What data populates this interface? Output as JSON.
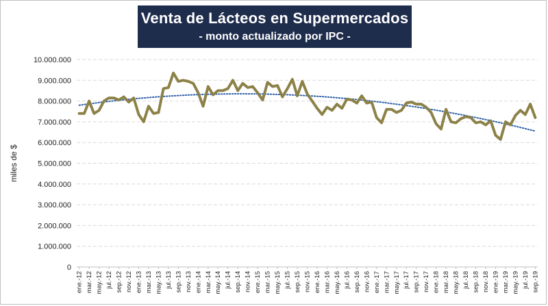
{
  "title": "Venta de Lácteos en Supermercados",
  "subtitle": "- monto actualizado por IPC -",
  "colors": {
    "title_bg": "#1f2d4d",
    "series": "#8c8248",
    "trend": "#2e5fa8",
    "grid": "#d9d9d9"
  },
  "chart_data": {
    "type": "line",
    "ylabel": "miles de $",
    "xlabel": "",
    "ylim": [
      0,
      10000000
    ],
    "y_ticks": [
      0,
      1000000,
      2000000,
      3000000,
      4000000,
      5000000,
      6000000,
      7000000,
      8000000,
      9000000,
      10000000
    ],
    "y_tick_labels": [
      "0",
      "1.000.000",
      "2.000.000",
      "3.000.000",
      "4.000.000",
      "5.000.000",
      "6.000.000",
      "7.000.000",
      "8.000.000",
      "9.000.000",
      "10.000.000"
    ],
    "grid": true,
    "x_tick_labels": [
      "ene.-12",
      "mar.-12",
      "may.-12",
      "jul.-12",
      "sep.-12",
      "nov.-12",
      "ene.-13",
      "mar.-13",
      "may.-13",
      "jul.-13",
      "sep.-13",
      "nov.-13",
      "ene.-14",
      "mar.-14",
      "may.-14",
      "jul.-14",
      "sep.-14",
      "nov.-14",
      "ene.-15",
      "mar.-15",
      "may.-15",
      "jul.-15",
      "sep.-15",
      "nov.-15",
      "ene.-16",
      "mar.-16",
      "may.-16",
      "jul.-16",
      "sep.-16",
      "nov.-16",
      "ene.-17",
      "mar.-17",
      "may.-17",
      "jul.-17",
      "sep.-17",
      "nov.-17",
      "ene.-18",
      "mar.-18",
      "may.-18",
      "jul.-18",
      "sep.-18",
      "nov.-18",
      "ene.-19",
      "mar.-19",
      "may.-19",
      "jul.-19",
      "sep.-19"
    ],
    "series": [
      {
        "values": [
          7400000,
          7400000,
          8000000,
          7400000,
          7550000,
          8000000,
          8150000,
          8150000,
          8050000,
          8200000,
          7950000,
          8150000,
          7350000,
          7000000,
          7750000,
          7400000,
          7450000,
          8600000,
          8650000,
          9350000,
          8950000,
          9000000,
          8950000,
          8850000,
          8400000,
          7750000,
          8700000,
          8300000,
          8500000,
          8500000,
          8600000,
          9000000,
          8500000,
          8850000,
          8650000,
          8700000,
          8400000,
          8050000,
          8900000,
          8700000,
          8750000,
          8200000,
          8600000,
          9050000,
          8250000,
          8950000,
          8350000,
          8000000,
          7650000,
          7350000,
          7700000,
          7550000,
          7850000,
          7650000,
          8100000,
          8050000,
          7900000,
          8250000,
          7900000,
          7950000,
          7200000,
          6950000,
          7600000,
          7600000,
          7450000,
          7550000,
          7900000,
          7950000,
          7850000,
          7850000,
          7700000,
          7450000,
          6900000,
          6650000,
          7600000,
          7000000,
          6950000,
          7150000,
          7250000,
          7200000,
          6950000,
          7000000,
          6850000,
          7050000,
          6350000,
          6150000,
          7000000,
          6850000,
          7300000,
          7550000,
          7350000,
          7850000,
          7200000
        ]
      },
      {
        "type": "trend",
        "values": [
          7800000,
          8310000,
          6550000
        ]
      }
    ]
  }
}
